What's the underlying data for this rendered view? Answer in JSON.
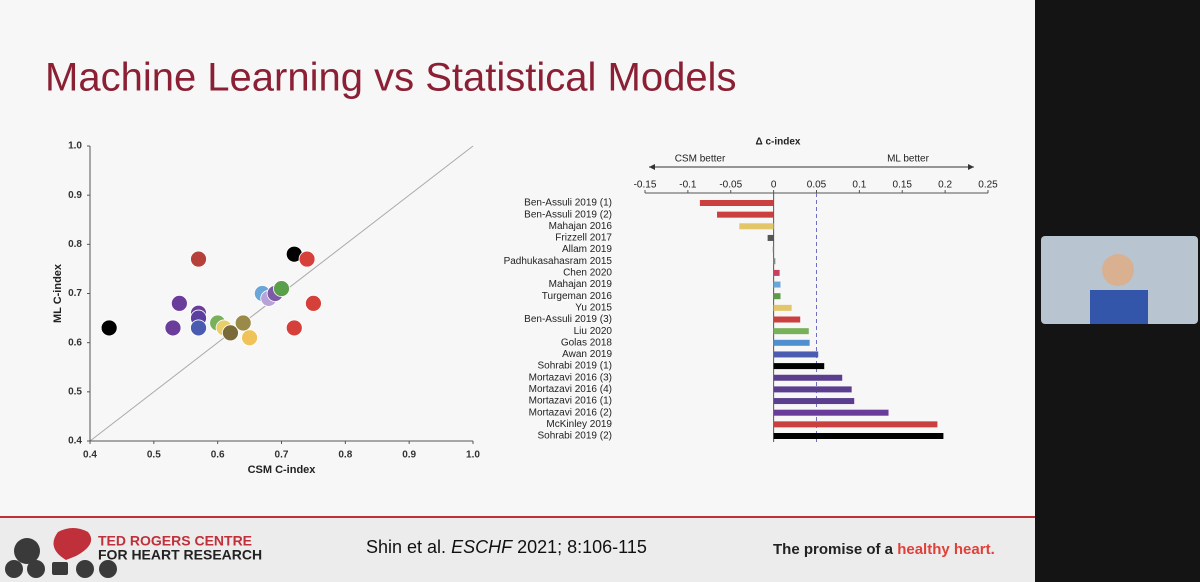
{
  "slide": {
    "title": "Machine Learning vs Statistical Models",
    "citation": [
      "Shin et al. ",
      "ESCHF",
      " 2021; 8:106-115"
    ],
    "logo": [
      "TED ROGERS CENTRE",
      "FOR HEART RESEARCH"
    ],
    "tagline": [
      "The promise of a ",
      "healthy heart."
    ]
  },
  "chart_data": [
    {
      "type": "scatter",
      "x_label": "CSM C-index",
      "y_label": "ML C-index",
      "x": [
        0.43,
        0.53,
        0.54,
        0.57,
        0.57,
        0.57,
        0.57,
        0.6,
        0.61,
        0.62,
        0.64,
        0.65,
        0.67,
        0.68,
        0.69,
        0.7,
        0.72,
        0.74,
        0.75,
        0.72
      ],
      "y": [
        0.63,
        0.63,
        0.68,
        0.66,
        0.65,
        0.63,
        0.77,
        0.64,
        0.63,
        0.62,
        0.64,
        0.61,
        0.7,
        0.69,
        0.7,
        0.71,
        0.78,
        0.77,
        0.68,
        0.63
      ],
      "colors": [
        "#000000",
        "#6a3d9a",
        "#6a3d9a",
        "#6a3d9a",
        "#5b3f9e",
        "#4a5cb0",
        "#b5413a",
        "#79b15b",
        "#e8cf6a",
        "#7a6a3a",
        "#9a8a4a",
        "#efc35a",
        "#6aa7d8",
        "#b7a3d9",
        "#7d5aa6",
        "#5aa04a",
        "#000000",
        "#d6403a",
        "#d6403a",
        "#d6403a"
      ],
      "xlim": [
        0.4,
        1
      ],
      "ylim": [
        0.4,
        1
      ],
      "xticks": [
        0.4,
        0.5,
        0.6,
        0.7,
        0.8,
        0.9,
        {
          "value": 1,
          "label": "1.0"
        }
      ],
      "yticks": [
        0.4,
        0.5,
        0.6,
        0.7,
        0.8,
        0.9,
        {
          "value": 1,
          "label": "1.0"
        }
      ]
    },
    {
      "type": "bar",
      "orientation": "horizontal",
      "title": "Δ c-index",
      "annotations": [
        "CSM better",
        "ML better"
      ],
      "categories": [
        "Ben-Assuli 2019 (1)",
        "Ben-Assuli 2019 (2)",
        "Mahajan 2016",
        "Frizzell 2017",
        "Allam 2019",
        "Padhukasahasram 2015",
        "Chen 2020",
        "Mahajan 2019",
        "Turgeman 2016",
        "Yu 2015",
        "Ben-Assuli 2019 (3)",
        "Liu 2020",
        "Golas 2018",
        "Awan 2019",
        "Sohrabi 2019 (1)",
        "Mortazavi 2016 (3)",
        "Mortazavi 2016 (4)",
        "Mortazavi 2016 (1)",
        "Mortazavi 2016 (2)",
        "McKinley 2019",
        "Sohrabi 2019 (2)"
      ],
      "values": [
        -0.086,
        -0.066,
        -0.04,
        -0.007,
        -0.001,
        0.002,
        0.007,
        0.008,
        0.008,
        0.021,
        0.031,
        0.041,
        0.042,
        0.052,
        0.059,
        0.08,
        0.091,
        0.094,
        0.134,
        0.191,
        0.198
      ],
      "colors": [
        "#c9403e",
        "#c9403e",
        "#e3c56a",
        "#555555",
        "#888888",
        "#888888",
        "#c9405e",
        "#6aa7d8",
        "#5a9a4a",
        "#e3c56a",
        "#c9403e",
        "#79b15b",
        "#4f8fd0",
        "#4a5cb0",
        "#000000",
        "#5b3f8e",
        "#5b3f8e",
        "#5b3f8e",
        "#6a3d9a",
        "#c9403e",
        "#000000"
      ],
      "xlim": [
        -0.15,
        0.25
      ],
      "xticks": [
        -0.15,
        -0.1,
        -0.05,
        0,
        0.05,
        0.1,
        0.15,
        0.2,
        0.25
      ],
      "reference_x": 0.05
    }
  ]
}
